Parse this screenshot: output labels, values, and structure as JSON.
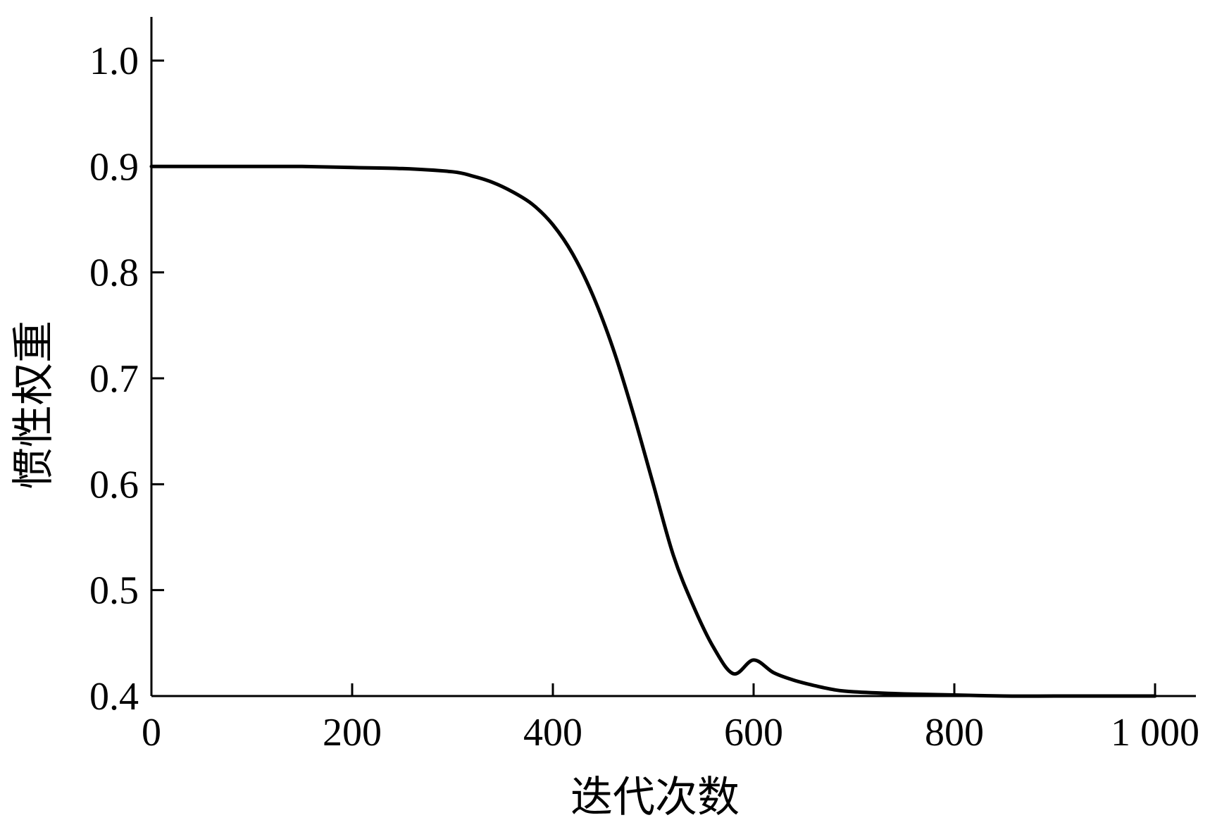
{
  "chart_data": {
    "type": "line",
    "title": "",
    "xlabel": "迭代次数",
    "ylabel": "惯性权重",
    "xlim": [
      0,
      1040
    ],
    "ylim": [
      0.4,
      1.04
    ],
    "grid": false,
    "xticks": [
      0,
      200,
      400,
      600,
      800,
      1000
    ],
    "xtick_labels": [
      "0",
      "200",
      "400",
      "600",
      "800",
      "1 000"
    ],
    "yticks": [
      0.4,
      0.5,
      0.6,
      0.7,
      0.8,
      0.9,
      1.0
    ],
    "ytick_labels": [
      "0.4",
      "0.5",
      "0.6",
      "0.7",
      "0.8",
      "0.9",
      "1.0"
    ],
    "series": [
      {
        "color": "#000000",
        "x": [
          0,
          50,
          100,
          150,
          200,
          250,
          300,
          320,
          340,
          360,
          380,
          400,
          420,
          440,
          460,
          480,
          500,
          520,
          540,
          560,
          580,
          600,
          620,
          640,
          660,
          680,
          700,
          750,
          800,
          850,
          900,
          950,
          1000
        ],
        "y": [
          0.9,
          0.9,
          0.9,
          0.9,
          0.899,
          0.898,
          0.895,
          0.891,
          0.885,
          0.876,
          0.864,
          0.845,
          0.817,
          0.778,
          0.728,
          0.667,
          0.6,
          0.533,
          0.485,
          0.446,
          0.421,
          0.434,
          0.422,
          0.415,
          0.41,
          0.406,
          0.404,
          0.402,
          0.401,
          0.4,
          0.4,
          0.4,
          0.4
        ]
      }
    ]
  }
}
